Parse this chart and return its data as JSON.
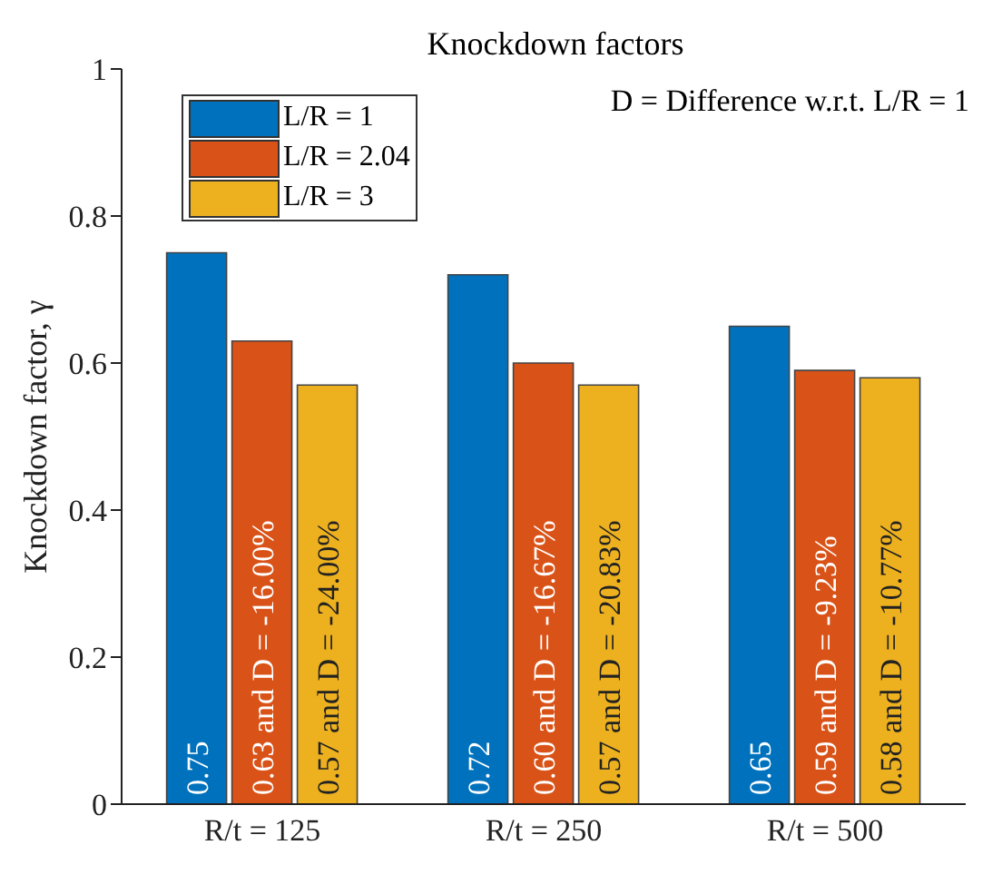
{
  "chart_data": {
    "type": "bar",
    "title": "Knockdown factors",
    "ylabel": "Knockdown factor, γ",
    "categories": [
      "R/t = 125",
      "R/t = 250",
      "R/t = 500"
    ],
    "series": [
      {
        "name": "L/R = 1",
        "color": "#0072bd",
        "values": [
          0.75,
          0.72,
          0.65
        ],
        "value_labels": [
          "0.75",
          "0.72",
          "0.65"
        ]
      },
      {
        "name": "L/R = 2.04",
        "color": "#d95319",
        "values": [
          0.63,
          0.6,
          0.59
        ],
        "value_labels": [
          "0.63 and D = -16.00%",
          "0.60 and D = -16.67%",
          "0.59 and D = -9.23%"
        ]
      },
      {
        "name": "L/R = 3",
        "color": "#edb120",
        "values": [
          0.57,
          0.57,
          0.58
        ],
        "value_labels": [
          "0.57 and D = -24.00%",
          "0.57 and D = -20.83%",
          "0.58 and D = -10.77%"
        ]
      }
    ],
    "ylim": [
      0,
      1
    ],
    "yticks": [
      0,
      0.2,
      0.4,
      0.6,
      0.8,
      1
    ],
    "grid": false,
    "legend": "top left",
    "annotations": [
      "D = Difference w.r.t. L/R = 1"
    ]
  }
}
